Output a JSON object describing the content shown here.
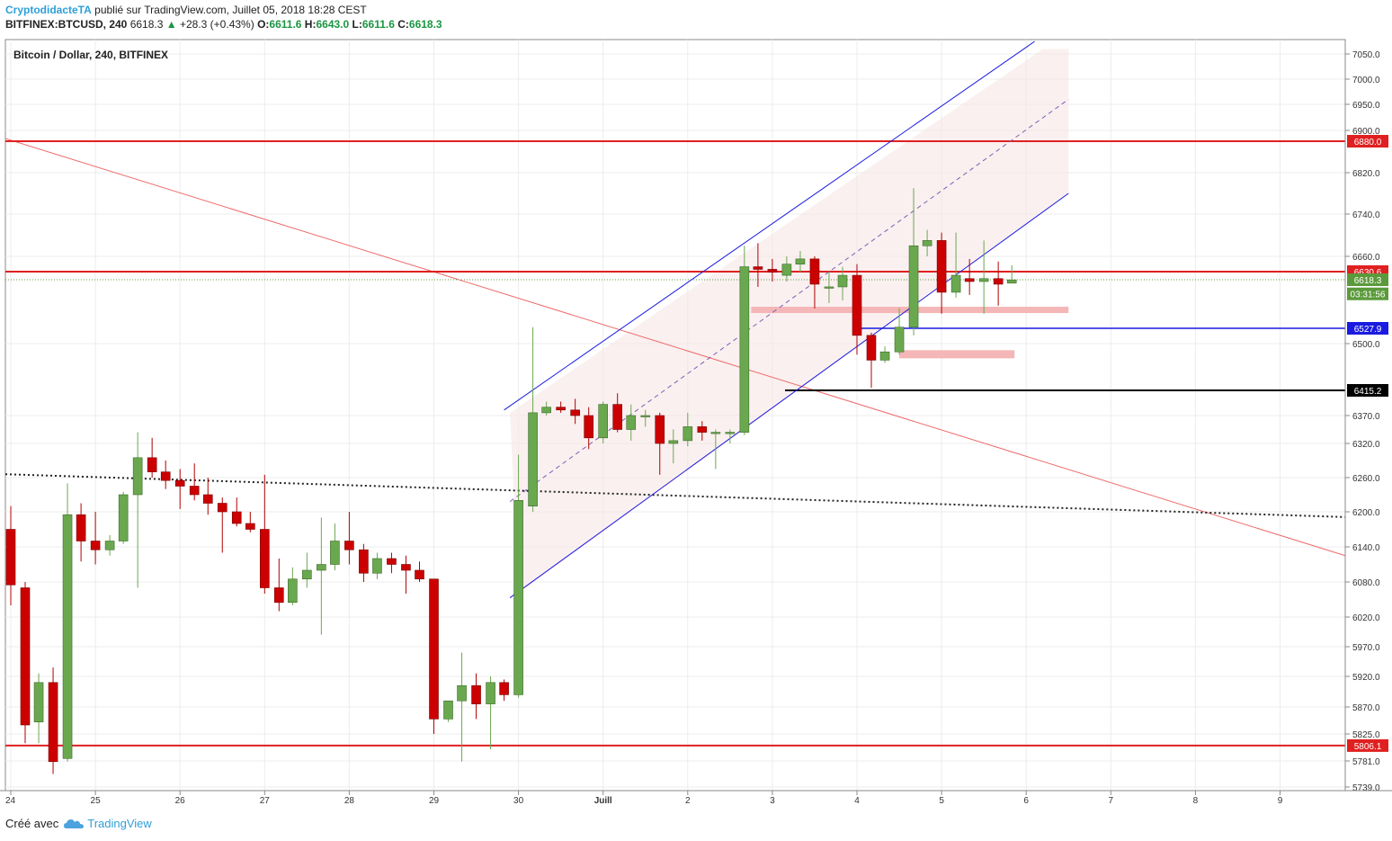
{
  "header": {
    "author": "CryptodidacteTA",
    "published_text": "publié sur TradingView.com, Juillet 05, 2018 18:28 CEST",
    "symbol": "BITFINEX:BTCUSD, 240",
    "last": "6618.3",
    "change": "+28.3 (+0.43%)",
    "o_label": "O:",
    "o_value": "6611.6",
    "h_label": "H:",
    "h_value": "6643.0",
    "l_label": "L:",
    "l_value": "6611.6",
    "c_label": "C:",
    "c_value": "6618.3"
  },
  "footer": {
    "created_with": "Créé avec",
    "brand": "TradingView"
  },
  "chart_data": {
    "type": "candlestick",
    "title": "Bitcoin / Dollar, 240, BITFINEX",
    "x_tick_labels": [
      "24",
      "25",
      "26",
      "27",
      "28",
      "29",
      "30",
      "Juill",
      "2",
      "3",
      "4",
      "5",
      "6",
      "7",
      "8",
      "9"
    ],
    "y_tick_labels": [
      5739,
      5781,
      5825,
      5870,
      5920,
      5970,
      6020,
      6080,
      6140,
      6200,
      6260,
      6320,
      6370,
      6500,
      6660,
      6740,
      6820,
      6900,
      6950,
      7000,
      7050
    ],
    "ylim": [
      5730,
      7070
    ],
    "grid": true,
    "price_tags": [
      {
        "text": "6880.0",
        "price": 6880.0,
        "color": "#e02020"
      },
      {
        "text": "6630.6",
        "price": 6630.6,
        "color": "#e02020"
      },
      {
        "text": "6618.3",
        "price": 6618.3,
        "color": "#5b9a3b"
      },
      {
        "text": "03:31:56",
        "price": 6592,
        "color": "#5b9a3b"
      },
      {
        "text": "6527.9",
        "price": 6527.9,
        "color": "#1a1ae0"
      },
      {
        "text": "6415.2",
        "price": 6415.2,
        "color": "#000000"
      },
      {
        "text": "5806.1",
        "price": 5806.1,
        "color": "#e02020"
      }
    ],
    "colors": {
      "up": "#6aa84f",
      "down": "#cc0000",
      "resistance": "#e02020",
      "channel": "#1a1ae0",
      "zone": "#f4b6b6"
    },
    "candles": [
      {
        "day": 24.0,
        "o": 6170,
        "h": 6210,
        "l": 6040,
        "c": 6075
      },
      {
        "day": 24.17,
        "o": 6070,
        "h": 6080,
        "l": 5810,
        "c": 5840
      },
      {
        "day": 24.33,
        "o": 5845,
        "h": 5925,
        "l": 5810,
        "c": 5910
      },
      {
        "day": 24.5,
        "o": 5910,
        "h": 5935,
        "l": 5760,
        "c": 5780
      },
      {
        "day": 24.67,
        "o": 5785,
        "h": 6250,
        "l": 5780,
        "c": 6195
      },
      {
        "day": 24.83,
        "o": 6195,
        "h": 6215,
        "l": 6115,
        "c": 6150
      },
      {
        "day": 25.0,
        "o": 6150,
        "h": 6200,
        "l": 6110,
        "c": 6135
      },
      {
        "day": 25.17,
        "o": 6135,
        "h": 6160,
        "l": 6125,
        "c": 6150
      },
      {
        "day": 25.33,
        "o": 6150,
        "h": 6235,
        "l": 6145,
        "c": 6230
      },
      {
        "day": 25.5,
        "o": 6230,
        "h": 6340,
        "l": 6070,
        "c": 6295
      },
      {
        "day": 25.67,
        "o": 6295,
        "h": 6330,
        "l": 6260,
        "c": 6270
      },
      {
        "day": 25.83,
        "o": 6270,
        "h": 6290,
        "l": 6240,
        "c": 6255
      },
      {
        "day": 26.0,
        "o": 6255,
        "h": 6275,
        "l": 6205,
        "c": 6245
      },
      {
        "day": 26.17,
        "o": 6245,
        "h": 6285,
        "l": 6220,
        "c": 6230
      },
      {
        "day": 26.33,
        "o": 6230,
        "h": 6260,
        "l": 6195,
        "c": 6215
      },
      {
        "day": 26.5,
        "o": 6215,
        "h": 6225,
        "l": 6130,
        "c": 6200
      },
      {
        "day": 26.67,
        "o": 6200,
        "h": 6225,
        "l": 6175,
        "c": 6180
      },
      {
        "day": 26.83,
        "o": 6180,
        "h": 6200,
        "l": 6165,
        "c": 6170
      },
      {
        "day": 27.0,
        "o": 6170,
        "h": 6265,
        "l": 6060,
        "c": 6070
      },
      {
        "day": 27.17,
        "o": 6070,
        "h": 6120,
        "l": 6030,
        "c": 6045
      },
      {
        "day": 27.33,
        "o": 6045,
        "h": 6105,
        "l": 6040,
        "c": 6085
      },
      {
        "day": 27.5,
        "o": 6085,
        "h": 6130,
        "l": 6070,
        "c": 6100
      },
      {
        "day": 27.67,
        "o": 6100,
        "h": 6190,
        "l": 5990,
        "c": 6110
      },
      {
        "day": 27.83,
        "o": 6110,
        "h": 6180,
        "l": 6100,
        "c": 6150
      },
      {
        "day": 28.0,
        "o": 6150,
        "h": 6200,
        "l": 6110,
        "c": 6135
      },
      {
        "day": 28.17,
        "o": 6135,
        "h": 6145,
        "l": 6080,
        "c": 6095
      },
      {
        "day": 28.33,
        "o": 6095,
        "h": 6130,
        "l": 6085,
        "c": 6120
      },
      {
        "day": 28.5,
        "o": 6120,
        "h": 6130,
        "l": 6095,
        "c": 6110
      },
      {
        "day": 28.67,
        "o": 6110,
        "h": 6125,
        "l": 6060,
        "c": 6100
      },
      {
        "day": 28.83,
        "o": 6100,
        "h": 6115,
        "l": 6080,
        "c": 6085
      },
      {
        "day": 29.0,
        "o": 6085,
        "h": 6085,
        "l": 5825,
        "c": 5850
      },
      {
        "day": 29.17,
        "o": 5850,
        "h": 5880,
        "l": 5845,
        "c": 5880
      },
      {
        "day": 29.33,
        "o": 5880,
        "h": 5960,
        "l": 5780,
        "c": 5905
      },
      {
        "day": 29.5,
        "o": 5905,
        "h": 5925,
        "l": 5850,
        "c": 5875
      },
      {
        "day": 29.67,
        "o": 5875,
        "h": 5920,
        "l": 5800,
        "c": 5910
      },
      {
        "day": 29.83,
        "o": 5910,
        "h": 5915,
        "l": 5880,
        "c": 5890
      },
      {
        "day": 30.0,
        "o": 5890,
        "h": 6300,
        "l": 5885,
        "c": 6220
      },
      {
        "day": 30.17,
        "o": 6210,
        "h": 6530,
        "l": 6200,
        "c": 6375
      },
      {
        "day": 30.33,
        "o": 6375,
        "h": 6395,
        "l": 6370,
        "c": 6385
      },
      {
        "day": 30.5,
        "o": 6385,
        "h": 6395,
        "l": 6375,
        "c": 6380
      },
      {
        "day": 30.67,
        "o": 6380,
        "h": 6400,
        "l": 6355,
        "c": 6370
      },
      {
        "day": 30.83,
        "o": 6370,
        "h": 6385,
        "l": 6310,
        "c": 6330
      },
      {
        "day": 31.0,
        "o": 6330,
        "h": 6395,
        "l": 6320,
        "c": 6390
      },
      {
        "day": 31.17,
        "o": 6390,
        "h": 6410,
        "l": 6340,
        "c": 6345
      },
      {
        "day": 31.33,
        "o": 6345,
        "h": 6390,
        "l": 6325,
        "c": 6370
      },
      {
        "day": 31.5,
        "o": 6370,
        "h": 6380,
        "l": 6350,
        "c": 6370
      },
      {
        "day": 31.67,
        "o": 6370,
        "h": 6375,
        "l": 6265,
        "c": 6320
      },
      {
        "day": 31.83,
        "o": 6320,
        "h": 6345,
        "l": 6285,
        "c": 6325
      },
      {
        "day": 32.0,
        "o": 6325,
        "h": 6375,
        "l": 6315,
        "c": 6350
      },
      {
        "day": 32.17,
        "o": 6350,
        "h": 6360,
        "l": 6325,
        "c": 6340
      },
      {
        "day": 32.33,
        "o": 6340,
        "h": 6345,
        "l": 6275,
        "c": 6340
      },
      {
        "day": 32.5,
        "o": 6340,
        "h": 6345,
        "l": 6320,
        "c": 6340
      },
      {
        "day": 32.67,
        "o": 6340,
        "h": 6680,
        "l": 6335,
        "c": 6640
      },
      {
        "day": 32.83,
        "o": 6640,
        "h": 6685,
        "l": 6605,
        "c": 6635
      },
      {
        "day": 33.0,
        "o": 6635,
        "h": 6655,
        "l": 6615,
        "c": 6630
      },
      {
        "day": 33.17,
        "o": 6625,
        "h": 6660,
        "l": 6615,
        "c": 6645
      },
      {
        "day": 33.33,
        "o": 6645,
        "h": 6670,
        "l": 6630,
        "c": 6655
      },
      {
        "day": 33.5,
        "o": 6655,
        "h": 6660,
        "l": 6565,
        "c": 6610
      },
      {
        "day": 33.67,
        "o": 6605,
        "h": 6630,
        "l": 6575,
        "c": 6605
      },
      {
        "day": 33.83,
        "o": 6605,
        "h": 6640,
        "l": 6580,
        "c": 6625
      },
      {
        "day": 34.0,
        "o": 6625,
        "h": 6645,
        "l": 6480,
        "c": 6515
      },
      {
        "day": 34.17,
        "o": 6515,
        "h": 6520,
        "l": 6420,
        "c": 6470
      },
      {
        "day": 34.33,
        "o": 6470,
        "h": 6495,
        "l": 6465,
        "c": 6485
      },
      {
        "day": 34.5,
        "o": 6485,
        "h": 6565,
        "l": 6480,
        "c": 6530
      },
      {
        "day": 34.67,
        "o": 6530,
        "h": 6790,
        "l": 6515,
        "c": 6680
      },
      {
        "day": 34.83,
        "o": 6680,
        "h": 6710,
        "l": 6660,
        "c": 6690
      },
      {
        "day": 35.0,
        "o": 6690,
        "h": 6705,
        "l": 6555,
        "c": 6595
      },
      {
        "day": 35.17,
        "o": 6595,
        "h": 6705,
        "l": 6585,
        "c": 6625
      },
      {
        "day": 35.33,
        "o": 6620,
        "h": 6655,
        "l": 6590,
        "c": 6615
      },
      {
        "day": 35.5,
        "o": 6615,
        "h": 6690,
        "l": 6555,
        "c": 6620
      },
      {
        "day": 35.67,
        "o": 6620,
        "h": 6650,
        "l": 6570,
        "c": 6610
      },
      {
        "day": 35.83,
        "o": 6612,
        "h": 6643,
        "l": 6612,
        "c": 6618
      }
    ]
  }
}
